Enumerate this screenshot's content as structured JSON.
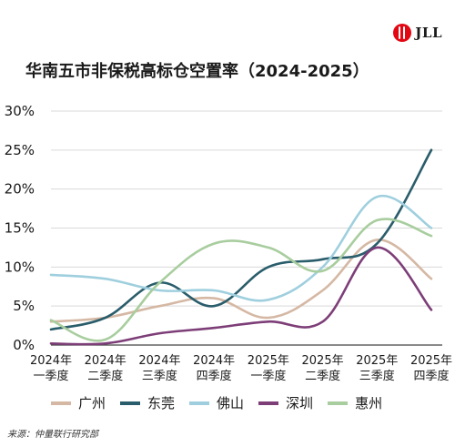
{
  "header": {
    "title": "华南五市非保税高标仓空置率（2024-2025）",
    "logo_text": "JLL",
    "logo_color": "#e30613"
  },
  "chart_data": {
    "type": "line",
    "title": "华南五市非保税高标仓空置率（2024-2025）",
    "categories": [
      [
        "2024年",
        "一季度"
      ],
      [
        "2024年",
        "二季度"
      ],
      [
        "2024年",
        "三季度"
      ],
      [
        "2024年",
        "四季度"
      ],
      [
        "2025年",
        "一季度"
      ],
      [
        "2025年",
        "二季度"
      ],
      [
        "2025年",
        "三季度"
      ],
      [
        "2025年",
        "四季度"
      ]
    ],
    "y_ticks": [
      "0%",
      "5%",
      "10%",
      "15%",
      "20%",
      "25%",
      "30%"
    ],
    "ylim": [
      0,
      30
    ],
    "grid": "horizontal",
    "series": [
      {
        "name": "广州",
        "color": "#d5b8a4",
        "values": [
          3.0,
          3.5,
          5.0,
          6.0,
          3.5,
          7.0,
          13.5,
          8.5
        ]
      },
      {
        "name": "东莞",
        "color": "#2a5d6b",
        "values": [
          2.0,
          3.5,
          8.0,
          5.0,
          10.0,
          11.0,
          13.0,
          25.0
        ]
      },
      {
        "name": "佛山",
        "color": "#9fcfde",
        "values": [
          9.0,
          8.5,
          7.0,
          7.0,
          5.8,
          10.0,
          19.0,
          15.0
        ]
      },
      {
        "name": "深圳",
        "color": "#7d3e78",
        "values": [
          0.2,
          0.2,
          1.5,
          2.2,
          3.0,
          3.0,
          12.5,
          4.5
        ]
      },
      {
        "name": "惠州",
        "color": "#a8cd9e",
        "values": [
          3.2,
          0.7,
          8.0,
          13.0,
          12.5,
          9.5,
          16.0,
          14.0
        ]
      }
    ],
    "legend_position": "bottom"
  },
  "footer": {
    "source": "来源：仲量联行研究部"
  }
}
